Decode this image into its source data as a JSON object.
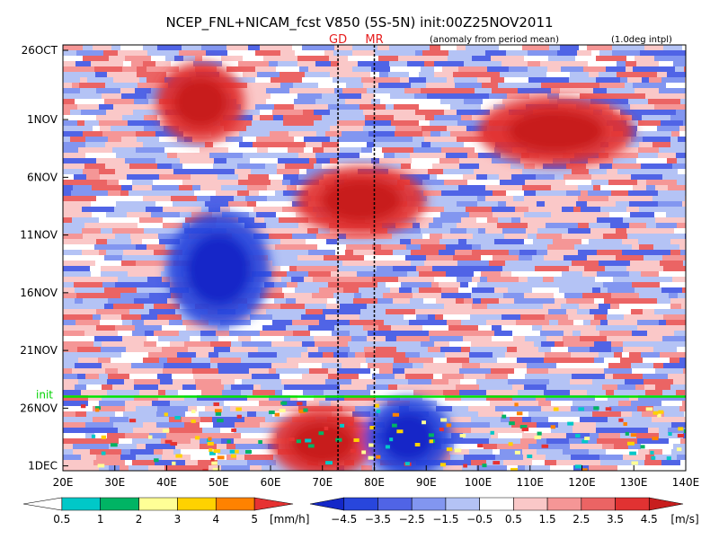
{
  "chart_data": {
    "type": "heatmap",
    "title": "NCEP_FNL+NICAM_fcst V850 (5S-5N) init:00Z25NOV2011",
    "subtitle_left": "(anomaly from period mean)",
    "subtitle_right": "(1.0deg intpl)",
    "x_ticks": [
      "20E",
      "30E",
      "40E",
      "50E",
      "60E",
      "70E",
      "80E",
      "90E",
      "100E",
      "110E",
      "120E",
      "130E",
      "140E"
    ],
    "x_range_deg": [
      20,
      140
    ],
    "y_ticks": [
      "26OCT",
      "1NOV",
      "6NOV",
      "11NOV",
      "16NOV",
      "21NOV",
      "26NOV",
      "1DEC"
    ],
    "y_tick_day_offsets": [
      0,
      6,
      11,
      16,
      21,
      26,
      31,
      36
    ],
    "init_label": "init",
    "init_day_offset": 30,
    "markers": [
      {
        "label": "GD",
        "lon": 73
      },
      {
        "label": "MR",
        "lon": 80
      }
    ],
    "features": [
      {
        "sign": "positive",
        "lon": [
          38,
          55
        ],
        "day": [
          1,
          8
        ]
      },
      {
        "sign": "negative",
        "lon": [
          40,
          60
        ],
        "day": [
          14,
          24
        ]
      },
      {
        "sign": "positive",
        "lon": [
          65,
          90
        ],
        "day": [
          10,
          16
        ]
      },
      {
        "sign": "positive",
        "lon": [
          100,
          130
        ],
        "day": [
          4,
          10
        ]
      },
      {
        "sign": "positive",
        "lon": [
          60,
          80
        ],
        "day": [
          31,
          37
        ]
      },
      {
        "sign": "negative",
        "lon": [
          78,
          95
        ],
        "day": [
          30,
          37
        ]
      }
    ],
    "rain_colorbar": {
      "labels": [
        "0.5",
        "1",
        "2",
        "3",
        "4",
        "5"
      ],
      "unit": "[mm/h]",
      "colors": [
        "#ffffff",
        "#00c8c8",
        "#00b464",
        "#ffff96",
        "#ffd200",
        "#ff8200",
        "#e63232"
      ]
    },
    "wind_colorbar": {
      "labels": [
        "−4.5",
        "−3.5",
        "−2.5",
        "−1.5",
        "−0.5",
        "0.5",
        "1.5",
        "2.5",
        "3.5",
        "4.5"
      ],
      "unit": "[m/s]",
      "colors": [
        "#1428c8",
        "#2846dc",
        "#5064e6",
        "#8296f0",
        "#b4c3f5",
        "#ffffff",
        "#fac8c8",
        "#f59696",
        "#eb6464",
        "#e13232",
        "#c81e1e"
      ]
    }
  }
}
